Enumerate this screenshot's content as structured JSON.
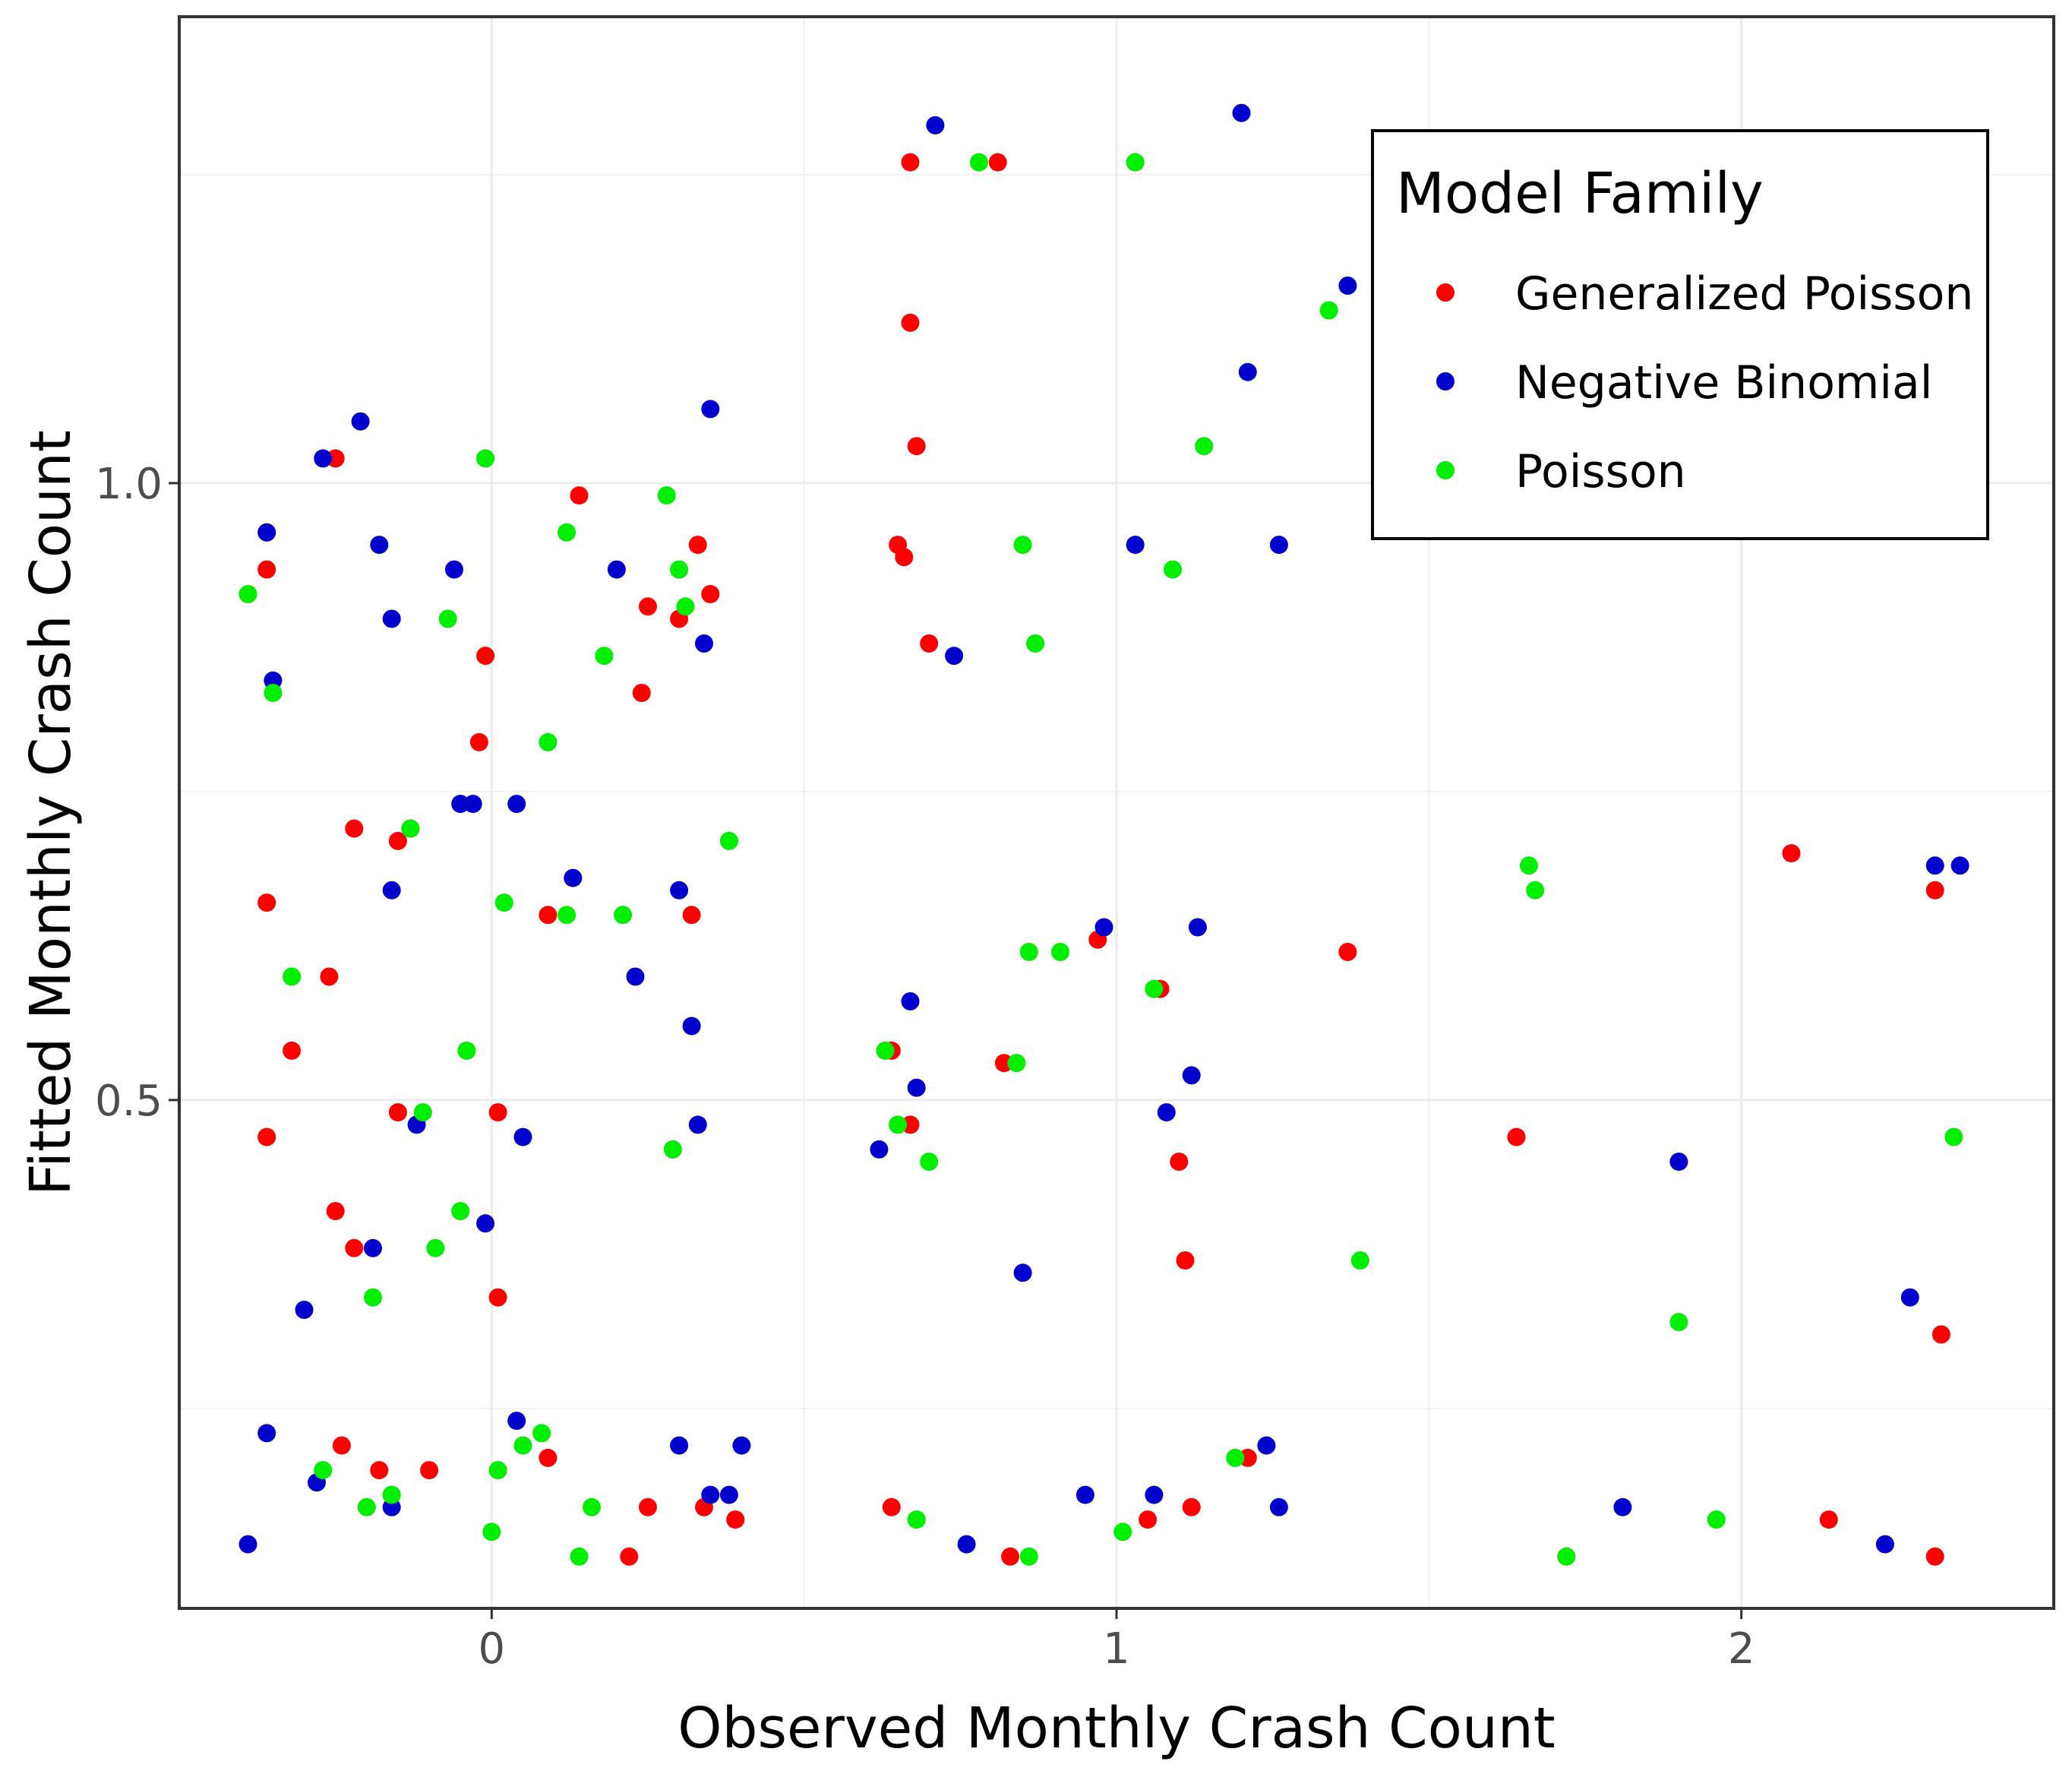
{
  "chart_data": {
    "type": "scatter",
    "xlabel": "Observed Monthly Crash Count",
    "ylabel": "Fitted Monthly Crash Count",
    "xlim": [
      -0.5,
      2.5
    ],
    "ylim": [
      0.088,
      1.378
    ],
    "x_ticks": [
      "0",
      "1",
      "2"
    ],
    "y_ticks": [
      "0.5",
      "1.0"
    ],
    "grid": true,
    "legend": {
      "title": "Model Family",
      "position": "top-right"
    },
    "series": [
      {
        "name": "Generalized Poisson",
        "color": "#ff0000",
        "points": [
          [
            -0.36,
            0.96
          ],
          [
            -0.25,
            1.02
          ],
          [
            -0.36,
            0.93
          ],
          [
            -0.01,
            0.86
          ],
          [
            0.14,
            0.99
          ],
          [
            -0.02,
            0.79
          ],
          [
            0.33,
            0.95
          ],
          [
            0.35,
            0.91
          ],
          [
            0.25,
            0.9
          ],
          [
            0.3,
            0.89
          ],
          [
            0.24,
            0.83
          ],
          [
            0.67,
            1.26
          ],
          [
            0.81,
            1.26
          ],
          [
            0.67,
            1.13
          ],
          [
            0.68,
            1.03
          ],
          [
            0.65,
            0.95
          ],
          [
            0.66,
            0.94
          ],
          [
            0.7,
            0.87
          ],
          [
            -0.22,
            0.72
          ],
          [
            -0.15,
            0.71
          ],
          [
            -0.13,
            0.72
          ],
          [
            -0.36,
            0.66
          ],
          [
            0.09,
            0.65
          ],
          [
            0.32,
            0.65
          ],
          [
            -0.26,
            0.6
          ],
          [
            -0.32,
            0.54
          ],
          [
            -0.36,
            0.47
          ],
          [
            -0.15,
            0.49
          ],
          [
            0.01,
            0.49
          ],
          [
            -0.25,
            0.41
          ],
          [
            -0.22,
            0.38
          ],
          [
            0.01,
            0.34
          ],
          [
            0.64,
            0.54
          ],
          [
            0.67,
            0.48
          ],
          [
            0.82,
            0.53
          ],
          [
            0.97,
            0.63
          ],
          [
            1.07,
            0.59
          ],
          [
            1.1,
            0.45
          ],
          [
            1.11,
            0.37
          ],
          [
            1.37,
            0.62
          ],
          [
            1.64,
            0.47
          ],
          [
            2.08,
            0.7
          ],
          [
            2.31,
            0.67
          ],
          [
            2.32,
            0.31
          ],
          [
            -0.24,
            0.22
          ],
          [
            -0.18,
            0.2
          ],
          [
            -0.1,
            0.2
          ],
          [
            0.09,
            0.21
          ],
          [
            0.25,
            0.17
          ],
          [
            0.34,
            0.17
          ],
          [
            0.39,
            0.16
          ],
          [
            0.22,
            0.13
          ],
          [
            0.64,
            0.17
          ],
          [
            0.83,
            0.13
          ],
          [
            1.05,
            0.16
          ],
          [
            1.12,
            0.17
          ],
          [
            1.21,
            0.21
          ],
          [
            2.14,
            0.16
          ],
          [
            2.31,
            0.13
          ]
        ]
      },
      {
        "name": "Negative Binomial",
        "color": "#0000cc",
        "points": [
          [
            -0.27,
            1.02
          ],
          [
            -0.21,
            1.05
          ],
          [
            -0.36,
            0.96
          ],
          [
            -0.18,
            0.95
          ],
          [
            -0.16,
            0.89
          ],
          [
            -0.06,
            0.93
          ],
          [
            -0.35,
            0.84
          ],
          [
            0.2,
            0.93
          ],
          [
            0.35,
            1.06
          ],
          [
            0.34,
            0.87
          ],
          [
            0.71,
            1.29
          ],
          [
            0.74,
            0.86
          ],
          [
            1.2,
            1.3
          ],
          [
            1.37,
            1.16
          ],
          [
            1.21,
            1.09
          ],
          [
            1.03,
            0.95
          ],
          [
            1.26,
            0.95
          ],
          [
            -0.05,
            0.74
          ],
          [
            -0.03,
            0.74
          ],
          [
            0.04,
            0.74
          ],
          [
            -0.16,
            0.67
          ],
          [
            0.13,
            0.68
          ],
          [
            0.3,
            0.67
          ],
          [
            0.23,
            0.6
          ],
          [
            0.32,
            0.56
          ],
          [
            -0.12,
            0.48
          ],
          [
            0.05,
            0.47
          ],
          [
            0.33,
            0.48
          ],
          [
            -0.01,
            0.4
          ],
          [
            -0.19,
            0.38
          ],
          [
            -0.3,
            0.33
          ],
          [
            0.62,
            0.46
          ],
          [
            0.67,
            0.58
          ],
          [
            0.68,
            0.51
          ],
          [
            0.85,
            0.36
          ],
          [
            0.98,
            0.64
          ],
          [
            1.08,
            0.49
          ],
          [
            1.12,
            0.52
          ],
          [
            1.13,
            0.64
          ],
          [
            1.9,
            0.45
          ],
          [
            2.27,
            0.34
          ],
          [
            2.31,
            0.69
          ],
          [
            2.35,
            0.69
          ],
          [
            -0.36,
            0.23
          ],
          [
            -0.28,
            0.19
          ],
          [
            -0.16,
            0.17
          ],
          [
            0.04,
            0.24
          ],
          [
            0.3,
            0.22
          ],
          [
            0.35,
            0.18
          ],
          [
            0.38,
            0.18
          ],
          [
            0.4,
            0.22
          ],
          [
            -0.39,
            0.14
          ],
          [
            0.76,
            0.14
          ],
          [
            0.95,
            0.18
          ],
          [
            1.06,
            0.18
          ],
          [
            1.24,
            0.22
          ],
          [
            1.26,
            0.17
          ],
          [
            1.81,
            0.17
          ],
          [
            2.23,
            0.14
          ]
        ]
      },
      {
        "name": "Poisson",
        "color": "#00ee00",
        "points": [
          [
            -0.39,
            0.91
          ],
          [
            -0.35,
            0.83
          ],
          [
            -0.01,
            1.02
          ],
          [
            0.12,
            0.96
          ],
          [
            0.28,
            0.99
          ],
          [
            0.3,
            0.93
          ],
          [
            -0.07,
            0.89
          ],
          [
            0.18,
            0.86
          ],
          [
            0.31,
            0.9
          ],
          [
            0.09,
            0.79
          ],
          [
            0.78,
            1.26
          ],
          [
            1.03,
            1.26
          ],
          [
            1.34,
            1.14
          ],
          [
            1.14,
            1.03
          ],
          [
            0.85,
            0.95
          ],
          [
            1.09,
            0.93
          ],
          [
            0.87,
            0.87
          ],
          [
            -0.13,
            0.72
          ],
          [
            0.38,
            0.71
          ],
          [
            0.02,
            0.66
          ],
          [
            0.12,
            0.65
          ],
          [
            0.21,
            0.65
          ],
          [
            -0.32,
            0.6
          ],
          [
            -0.04,
            0.54
          ],
          [
            -0.11,
            0.49
          ],
          [
            -0.05,
            0.41
          ],
          [
            -0.09,
            0.38
          ],
          [
            0.29,
            0.46
          ],
          [
            -0.19,
            0.34
          ],
          [
            0.63,
            0.54
          ],
          [
            0.65,
            0.48
          ],
          [
            0.7,
            0.45
          ],
          [
            0.84,
            0.53
          ],
          [
            0.86,
            0.62
          ],
          [
            0.91,
            0.62
          ],
          [
            1.06,
            0.59
          ],
          [
            1.39,
            0.37
          ],
          [
            1.66,
            0.69
          ],
          [
            1.67,
            0.67
          ],
          [
            1.9,
            0.32
          ],
          [
            2.34,
            0.47
          ],
          [
            -0.27,
            0.2
          ],
          [
            -0.2,
            0.17
          ],
          [
            -0.16,
            0.18
          ],
          [
            0.01,
            0.2
          ],
          [
            0.05,
            0.22
          ],
          [
            0.08,
            0.23
          ],
          [
            0.16,
            0.17
          ],
          [
            0.0,
            0.15
          ],
          [
            0.14,
            0.13
          ],
          [
            0.68,
            0.16
          ],
          [
            0.86,
            0.13
          ],
          [
            1.01,
            0.15
          ],
          [
            1.19,
            0.21
          ],
          [
            1.72,
            0.13
          ],
          [
            1.96,
            0.16
          ]
        ]
      }
    ]
  }
}
